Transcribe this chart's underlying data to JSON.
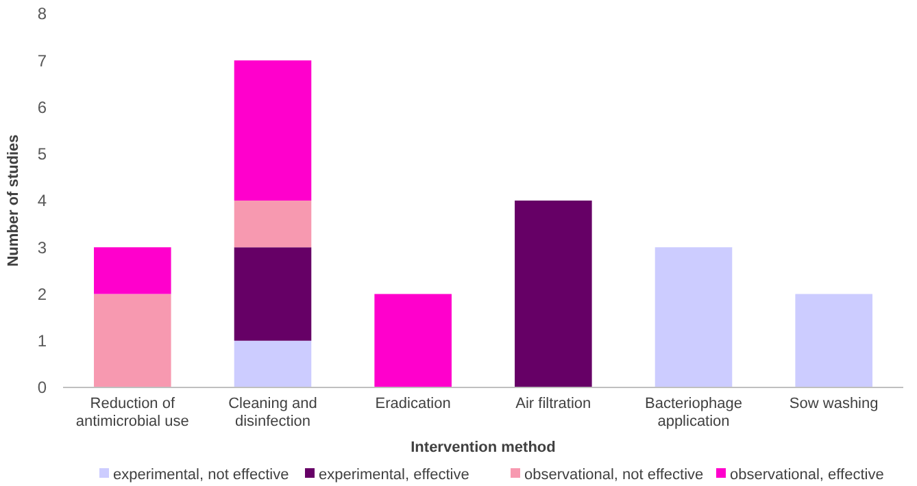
{
  "chart_data": {
    "type": "bar",
    "stacked": true,
    "xlabel": "Intervention method",
    "ylabel": "Number of studies",
    "categories": [
      "Reduction of antimicrobial use",
      "Cleaning and disinfection",
      "Eradication",
      "Air filtration",
      "Bacteriophage application",
      "Sow washing"
    ],
    "series": [
      {
        "name": "experimental, not effective",
        "color": "#ccccff",
        "values": [
          0,
          1,
          0,
          0,
          3,
          2
        ]
      },
      {
        "name": "experimental, effective",
        "color": "#660066",
        "values": [
          0,
          2,
          0,
          4,
          0,
          0
        ]
      },
      {
        "name": "observational, not effective",
        "color": "#f799b0",
        "values": [
          2,
          1,
          0,
          0,
          0,
          0
        ]
      },
      {
        "name": "observational, effective",
        "color": "#ff00cc",
        "values": [
          1,
          3,
          2,
          0,
          0,
          0
        ]
      }
    ],
    "ylim": [
      0,
      8
    ],
    "yticks": [
      0,
      1,
      2,
      3,
      4,
      5,
      6,
      7,
      8
    ],
    "grid": false,
    "legend": "bottom"
  }
}
